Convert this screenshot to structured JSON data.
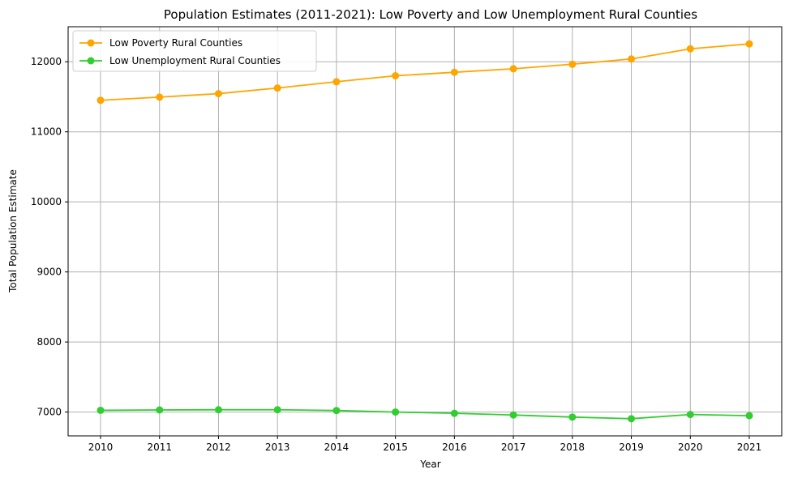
{
  "chart_data": {
    "type": "line",
    "title": "Population Estimates (2011-2021): Low Poverty and Low Unemployment Rural Counties",
    "xlabel": "Year",
    "ylabel": "Total Population Estimate",
    "x": [
      2010,
      2011,
      2012,
      2013,
      2014,
      2015,
      2016,
      2017,
      2018,
      2019,
      2020,
      2021
    ],
    "yticks": [
      7000,
      8000,
      9000,
      10000,
      11000,
      12000
    ],
    "ylim": [
      6660,
      12500
    ],
    "grid": true,
    "legend_position": "top-left",
    "series": [
      {
        "name": "Low Poverty Rural Counties",
        "color": "#FFA500",
        "marker": "circle",
        "values": [
          11450,
          11495,
          11545,
          11625,
          11715,
          11800,
          11850,
          11900,
          11965,
          12040,
          12185,
          12255
        ]
      },
      {
        "name": "Low Unemployment Rural Counties",
        "color": "#32CD32",
        "marker": "circle",
        "values": [
          7025,
          7030,
          7033,
          7033,
          7022,
          7000,
          6982,
          6958,
          6928,
          6905,
          6965,
          6948
        ]
      }
    ]
  }
}
